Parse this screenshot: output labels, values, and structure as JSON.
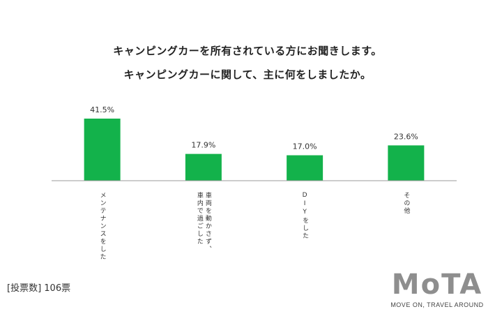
{
  "header": {
    "title_line1": "キャンピングカーを所有されている方にお聞きします。",
    "title_line2": "キャンピングカーに関して、主に何をしましたか。"
  },
  "footer": {
    "note": "[投票数] 106票",
    "logo": "MoTA",
    "tagline": "MOVE ON, TRAVEL AROUND"
  },
  "chart_data": {
    "type": "bar",
    "categories": [
      "メンテナンスをした",
      "車両を動かさず、車内で過ごした",
      "DIYをした",
      "その他"
    ],
    "values": [
      41.5,
      17.9,
      17.0,
      23.6
    ],
    "value_labels": [
      "41.5%",
      "17.9%",
      "17.0%",
      "23.6%"
    ],
    "category_columns": [
      [
        "メンテナンスをした"
      ],
      [
        "車両を動かさず、",
        "車内で過ごした"
      ],
      [
        "DIYをした"
      ],
      [
        "その他"
      ]
    ],
    "unit": "%",
    "ylim": [
      0,
      41.5
    ],
    "bar_color": "#13b24b",
    "grid": false,
    "legend": "none"
  }
}
